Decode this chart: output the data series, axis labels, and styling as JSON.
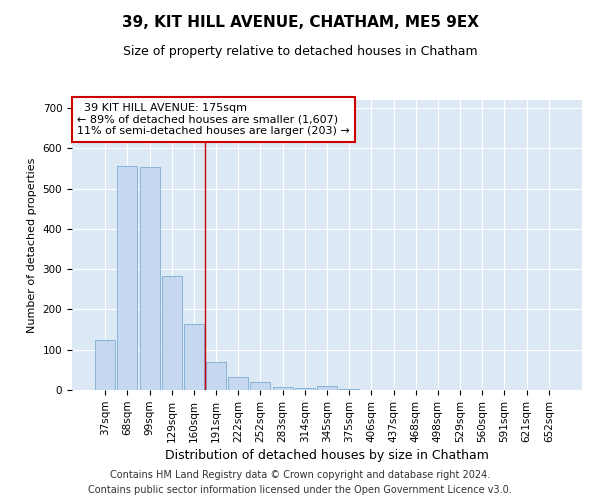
{
  "title": "39, KIT HILL AVENUE, CHATHAM, ME5 9EX",
  "subtitle": "Size of property relative to detached houses in Chatham",
  "xlabel": "Distribution of detached houses by size in Chatham",
  "ylabel": "Number of detached properties",
  "categories": [
    "37sqm",
    "68sqm",
    "99sqm",
    "129sqm",
    "160sqm",
    "191sqm",
    "222sqm",
    "252sqm",
    "283sqm",
    "314sqm",
    "345sqm",
    "375sqm",
    "406sqm",
    "437sqm",
    "468sqm",
    "498sqm",
    "529sqm",
    "560sqm",
    "591sqm",
    "621sqm",
    "652sqm"
  ],
  "values": [
    125,
    555,
    553,
    283,
    163,
    70,
    33,
    20,
    8,
    5,
    10,
    3,
    0,
    0,
    0,
    0,
    0,
    0,
    0,
    0,
    0
  ],
  "bar_color": "#c5d8ef",
  "bar_edge_color": "#7aadd4",
  "background_color": "#dde8f5",
  "grid_color": "#ffffff",
  "property_line_x": 4.5,
  "annotation_line1": "  39 KIT HILL AVENUE: 175sqm",
  "annotation_line2": "← 89% of detached houses are smaller (1,607)",
  "annotation_line3": "11% of semi-detached houses are larger (203) →",
  "annotation_box_color": "#ffffff",
  "annotation_box_edge_color": "#cc0000",
  "property_line_color": "#cc0000",
  "ylim": [
    0,
    720
  ],
  "yticks": [
    0,
    100,
    200,
    300,
    400,
    500,
    600,
    700
  ],
  "footnote1": "Contains HM Land Registry data © Crown copyright and database right 2024.",
  "footnote2": "Contains public sector information licensed under the Open Government Licence v3.0.",
  "title_fontsize": 11,
  "subtitle_fontsize": 9,
  "xlabel_fontsize": 9,
  "ylabel_fontsize": 8,
  "tick_fontsize": 7.5,
  "annotation_fontsize": 8,
  "footnote_fontsize": 7
}
